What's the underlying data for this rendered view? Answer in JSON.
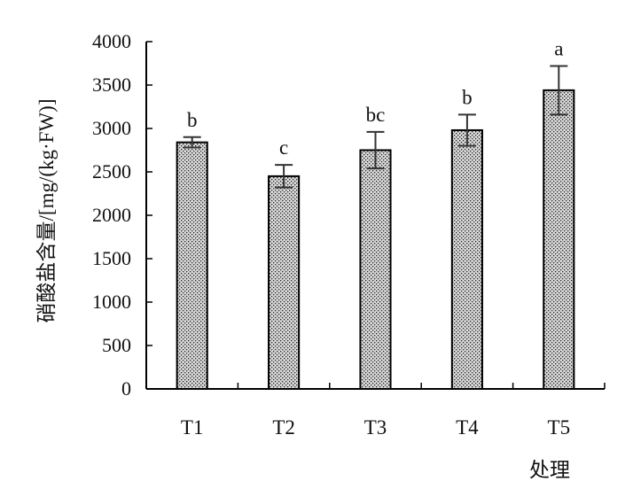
{
  "chart_data": {
    "type": "bar",
    "title": "",
    "xlabel": "处理",
    "ylabel": "硝酸盐含量/[mg/(kg·FW)]",
    "categories": [
      "T1",
      "T2",
      "T3",
      "T4",
      "T5"
    ],
    "values": [
      2840,
      2450,
      2750,
      2980,
      3440
    ],
    "errors": [
      60,
      130,
      210,
      180,
      280
    ],
    "significance": [
      "b",
      "c",
      "bc",
      "b",
      "a"
    ],
    "ylim": [
      0,
      4000
    ],
    "yticks": [
      "0",
      "500",
      "1000",
      "1500",
      "2000",
      "2500",
      "3000",
      "3500",
      "4000"
    ],
    "grid": false,
    "legend": "none",
    "bar_fill": "cross-hatched gray"
  }
}
